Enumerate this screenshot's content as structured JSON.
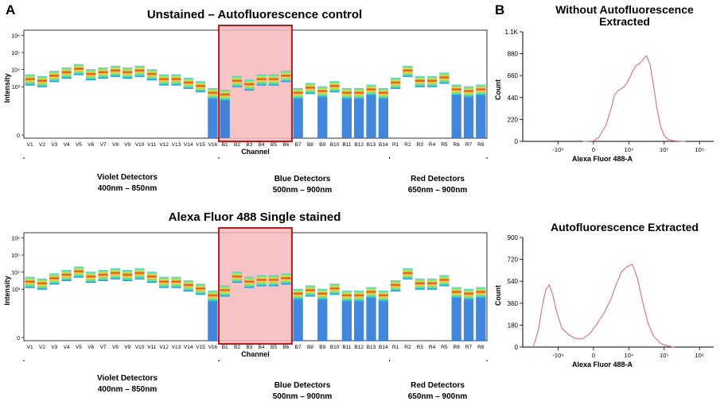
{
  "panels": {
    "a": "A",
    "b": "B"
  },
  "colors": {
    "highlight_fill": "#f6b9ba",
    "highlight_stroke": "#b51f24",
    "histogram_line": "#e07a7a",
    "axis": "#000000",
    "spectrum_gradient": [
      "#2c7bd8",
      "#3fd4d8",
      "#8fe07a",
      "#e8d83a",
      "#e0412a",
      "#e8d83a",
      "#8fe07a",
      "#3fd4d8"
    ]
  },
  "chart_data": [
    {
      "type": "heatmap",
      "title": "Unstained – Autofluorescence control",
      "xlabel": "Channel",
      "ylabel": "Intensity",
      "yticks": [
        "10⁶",
        "10⁵",
        "10⁴",
        "10³",
        "0"
      ],
      "categories": [
        "V1",
        "V2",
        "V3",
        "V4",
        "V5",
        "V6",
        "V7",
        "V8",
        "V9",
        "V10",
        "V11",
        "V12",
        "V13",
        "V14",
        "V15",
        "V16",
        "B1",
        "B2",
        "B3",
        "B4",
        "B5",
        "B6",
        "B7",
        "B8",
        "B9",
        "B10",
        "B11",
        "B12",
        "B13",
        "B14",
        "R1",
        "R2",
        "R3",
        "R4",
        "R5",
        "R6",
        "R7",
        "R8"
      ],
      "log_intensity": [
        3.4,
        3.3,
        3.6,
        3.8,
        4.0,
        3.7,
        3.8,
        3.9,
        3.8,
        3.9,
        3.7,
        3.4,
        3.4,
        3.2,
        3.0,
        2.6,
        2.5,
        3.3,
        3.1,
        3.4,
        3.4,
        3.6,
        2.6,
        2.9,
        2.7,
        3.0,
        2.6,
        2.6,
        2.8,
        2.6,
        3.2,
        3.9,
        3.3,
        3.3,
        3.5,
        2.8,
        2.7,
        2.8
      ],
      "highlight": {
        "from": "B1",
        "to": "B6"
      },
      "detector_groups": [
        {
          "name": "Violet Detectors",
          "range": "400nm – 850nm"
        },
        {
          "name": "Blue Detectors",
          "range": "500nm – 900nm"
        },
        {
          "name": "Red Detectors",
          "range": "650nm – 900nm"
        }
      ]
    },
    {
      "type": "heatmap",
      "title": "Alexa Fluor 488 Single stained",
      "xlabel": "Channel",
      "ylabel": "Intensity",
      "yticks": [
        "10⁶",
        "10⁵",
        "10⁴",
        "10³",
        "0"
      ],
      "categories": [
        "V1",
        "V2",
        "V3",
        "V4",
        "V5",
        "V6",
        "V7",
        "V8",
        "V9",
        "V10",
        "V11",
        "V12",
        "V13",
        "V14",
        "V15",
        "V16",
        "B1",
        "B2",
        "B3",
        "B4",
        "B5",
        "B6",
        "B7",
        "B8",
        "B9",
        "B10",
        "B11",
        "B12",
        "B13",
        "B14",
        "R1",
        "R2",
        "R3",
        "R4",
        "R5",
        "R6",
        "R7",
        "R8"
      ],
      "log_intensity": [
        3.4,
        3.3,
        3.6,
        3.8,
        4.0,
        3.7,
        3.8,
        3.9,
        3.8,
        3.9,
        3.7,
        3.4,
        3.4,
        3.2,
        3.0,
        2.6,
        2.9,
        3.7,
        3.4,
        3.5,
        3.5,
        3.6,
        2.7,
        2.9,
        2.7,
        3.0,
        2.6,
        2.6,
        2.8,
        2.6,
        3.2,
        3.9,
        3.3,
        3.3,
        3.5,
        2.8,
        2.7,
        2.8
      ],
      "highlight": {
        "from": "B1",
        "to": "B6"
      },
      "detector_groups": [
        {
          "name": "Violet Detectors",
          "range": "400nm – 850nm"
        },
        {
          "name": "Blue Detectors",
          "range": "500nm – 900nm"
        },
        {
          "name": "Red Detectors",
          "range": "650nm – 900nm"
        }
      ]
    },
    {
      "type": "line",
      "title": "Without Autofluorescence Extracted",
      "xlabel": "Alexa Fluor 488-A",
      "ylabel": "Count",
      "yticks": [
        "1.1K",
        "880",
        "660",
        "440",
        "220",
        "0"
      ],
      "ylim": [
        0,
        1100
      ],
      "xticks": [
        "-10⁴",
        "0",
        "10⁴",
        "10⁵",
        "10⁶"
      ],
      "x": [
        -0.3,
        0.0,
        0.15,
        0.35,
        0.5,
        0.6,
        0.7,
        0.8,
        0.9,
        1.0,
        1.1,
        1.2,
        1.3,
        1.4,
        1.5,
        1.6,
        1.7,
        1.8,
        1.9,
        2.0,
        2.1,
        2.3,
        2.6
      ],
      "y": [
        0,
        5,
        40,
        160,
        330,
        470,
        510,
        530,
        560,
        620,
        700,
        760,
        780,
        820,
        860,
        770,
        560,
        320,
        150,
        60,
        20,
        5,
        0
      ]
    },
    {
      "type": "line",
      "title": "Autofluorescence Extracted",
      "xlabel": "Alexa Fluor 488-A",
      "ylabel": "Count",
      "yticks": [
        "900",
        "720",
        "540",
        "360",
        "180",
        "0"
      ],
      "ylim": [
        0,
        900
      ],
      "xticks": [
        "-10⁴",
        "0",
        "10⁴",
        "10⁵",
        "10⁶"
      ],
      "x": [
        -1.7,
        -1.55,
        -1.45,
        -1.35,
        -1.25,
        -1.15,
        -1.05,
        -0.9,
        -0.7,
        -0.5,
        -0.3,
        -0.1,
        0.1,
        0.3,
        0.5,
        0.65,
        0.8,
        0.95,
        1.1,
        1.25,
        1.4,
        1.55,
        1.7,
        1.9,
        2.1,
        2.3
      ],
      "y": [
        0,
        150,
        330,
        470,
        510,
        430,
        300,
        160,
        100,
        70,
        70,
        110,
        190,
        280,
        400,
        520,
        620,
        660,
        680,
        560,
        360,
        190,
        90,
        30,
        10,
        0
      ]
    }
  ]
}
